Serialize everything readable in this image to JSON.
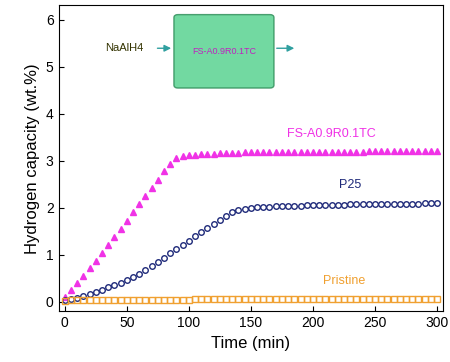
{
  "chart_data": {
    "type": "line",
    "x_label": "Time (min)",
    "y_label": "Hydrogen capacity (wt.%)",
    "annotations": [
      "NaAlH4",
      "FS-A0.9R0.1TC"
    ],
    "x": [
      0,
      5,
      10,
      15,
      20,
      25,
      30,
      35,
      40,
      45,
      50,
      55,
      60,
      65,
      70,
      75,
      80,
      85,
      90,
      95,
      100,
      105,
      110,
      115,
      120,
      125,
      130,
      135,
      140,
      145,
      150,
      155,
      160,
      165,
      170,
      175,
      180,
      185,
      190,
      195,
      200,
      205,
      210,
      215,
      220,
      225,
      230,
      235,
      240,
      245,
      250,
      255,
      260,
      265,
      270,
      275,
      280,
      285,
      290,
      295,
      300
    ],
    "xlim": [
      -5,
      305
    ],
    "xticks": [
      0,
      50,
      100,
      150,
      200,
      250,
      300
    ],
    "ylim": [
      -0.2,
      6.3
    ],
    "yticks": [
      0,
      1,
      2,
      3,
      4,
      5,
      6
    ],
    "series": [
      {
        "name": "FS-A0.9R0.1TC",
        "color": "#f032e6",
        "marker": "triangle",
        "values": [
          0.1,
          0.25,
          0.4,
          0.55,
          0.71,
          0.87,
          1.03,
          1.2,
          1.37,
          1.55,
          1.72,
          1.9,
          2.08,
          2.25,
          2.42,
          2.6,
          2.78,
          2.93,
          3.05,
          3.1,
          3.12,
          3.13,
          3.14,
          3.15,
          3.15,
          3.16,
          3.16,
          3.17,
          3.17,
          3.18,
          3.18,
          3.18,
          3.18,
          3.18,
          3.18,
          3.18,
          3.18,
          3.18,
          3.18,
          3.19,
          3.19,
          3.19,
          3.19,
          3.19,
          3.19,
          3.19,
          3.19,
          3.19,
          3.19,
          3.2,
          3.2,
          3.2,
          3.2,
          3.2,
          3.2,
          3.2,
          3.2,
          3.2,
          3.2,
          3.2,
          3.2
        ]
      },
      {
        "name": "P25",
        "color": "#1f2a7a",
        "marker": "circle",
        "values": [
          0.03,
          0.06,
          0.09,
          0.13,
          0.17,
          0.21,
          0.26,
          0.31,
          0.36,
          0.41,
          0.46,
          0.53,
          0.6,
          0.68,
          0.76,
          0.85,
          0.94,
          1.03,
          1.12,
          1.21,
          1.3,
          1.39,
          1.48,
          1.57,
          1.66,
          1.75,
          1.83,
          1.9,
          1.95,
          1.98,
          2.0,
          2.01,
          2.02,
          2.02,
          2.03,
          2.03,
          2.04,
          2.04,
          2.04,
          2.05,
          2.05,
          2.05,
          2.06,
          2.06,
          2.06,
          2.06,
          2.07,
          2.07,
          2.07,
          2.07,
          2.08,
          2.08,
          2.08,
          2.08,
          2.09,
          2.09,
          2.09,
          2.09,
          2.1,
          2.1,
          2.1
        ]
      },
      {
        "name": "Pristine",
        "color": "#f0a030",
        "marker": "square",
        "values": [
          0.02,
          0.03,
          0.04,
          0.04,
          0.05,
          0.05,
          0.05,
          0.05,
          0.05,
          0.05,
          0.05,
          0.05,
          0.05,
          0.05,
          0.05,
          0.05,
          0.05,
          0.05,
          0.05,
          0.05,
          0.05,
          0.06,
          0.06,
          0.06,
          0.06,
          0.06,
          0.06,
          0.06,
          0.06,
          0.06,
          0.06,
          0.06,
          0.06,
          0.06,
          0.06,
          0.06,
          0.06,
          0.06,
          0.06,
          0.06,
          0.06,
          0.07,
          0.07,
          0.07,
          0.07,
          0.07,
          0.07,
          0.07,
          0.07,
          0.07,
          0.07,
          0.07,
          0.07,
          0.07,
          0.07,
          0.07,
          0.07,
          0.07,
          0.07,
          0.07,
          0.07
        ]
      }
    ]
  }
}
